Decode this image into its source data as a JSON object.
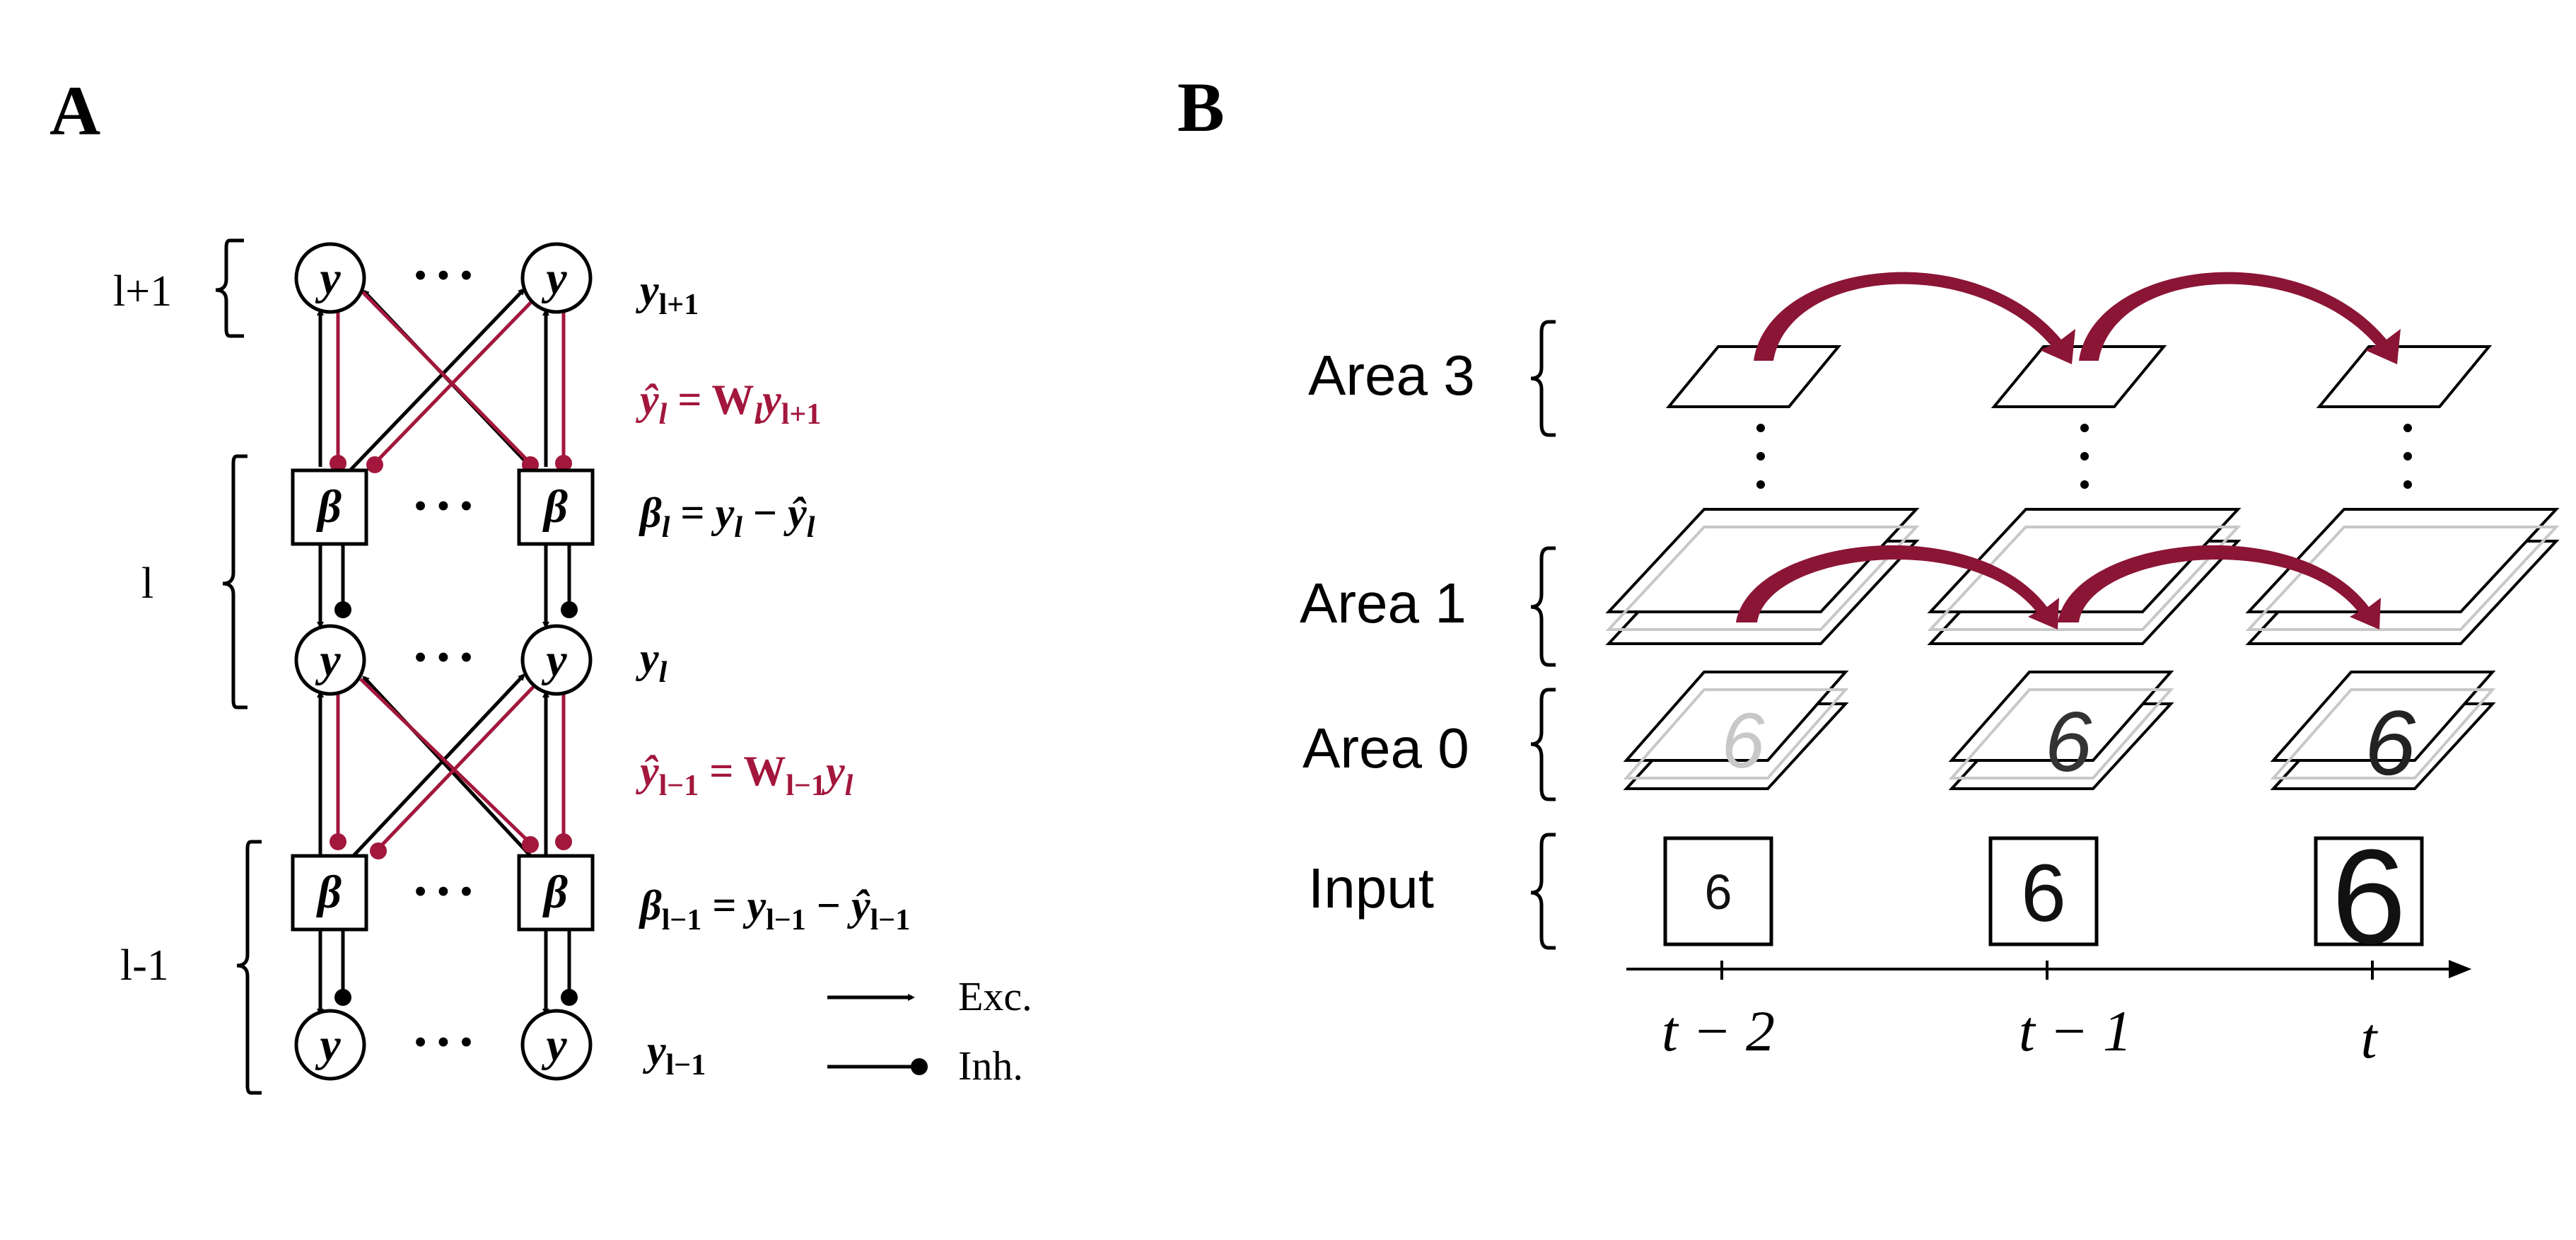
{
  "colors": {
    "accent": "#a3173c",
    "ink": "#000000",
    "faint": "#c8c8c8"
  },
  "panel_a": {
    "letter": "A",
    "layers": {
      "top": "l+1",
      "mid": "l",
      "bottom": "l-1"
    },
    "node_y": "y",
    "node_beta": "β",
    "ellipsis": "• • •",
    "eq1": "ŷ_l = W_l y_{l+1}",
    "eq1_parts": {
      "lhs": "ŷ",
      "lhs_sub": "l",
      "eqs": " = ",
      "w": "W",
      "w_sub": "l",
      "y": "y",
      "y_sub": "l+1"
    },
    "eq2_parts": {
      "b": "β",
      "b_sub": "l",
      "eqs": " = ",
      "y": "y",
      "y_sub": "l",
      "minus": " − ",
      "yh": "ŷ",
      "yh_sub": "l"
    },
    "eq3_parts": {
      "y": "y",
      "y_sub": "l"
    },
    "eq4_parts": {
      "lhs": "ŷ",
      "lhs_sub": "l−1",
      "eqs": " = ",
      "w": "W",
      "w_sub": "l−1",
      "y": "y",
      "y_sub": "l"
    },
    "eq5_parts": {
      "b": "β",
      "b_sub": "l−1",
      "eqs": " = ",
      "y": "y",
      "y_sub": "l−1",
      "minus": " − ",
      "yh": "ŷ",
      "yh_sub": "l−1"
    },
    "eq6_parts": {
      "y": "y",
      "y_sub": "l−1"
    },
    "top_label_parts": {
      "y": "y",
      "y_sub": "l+1"
    },
    "legend": {
      "exc": "Exc.",
      "inh": "Inh."
    }
  },
  "panel_b": {
    "letter": "B",
    "areas": [
      "Area 3",
      "Area 1",
      "Area 0",
      "Input"
    ],
    "area_dots": "•",
    "input_digit": "6",
    "time_ticks": [
      "t − 2",
      "t − 1",
      "t"
    ]
  }
}
